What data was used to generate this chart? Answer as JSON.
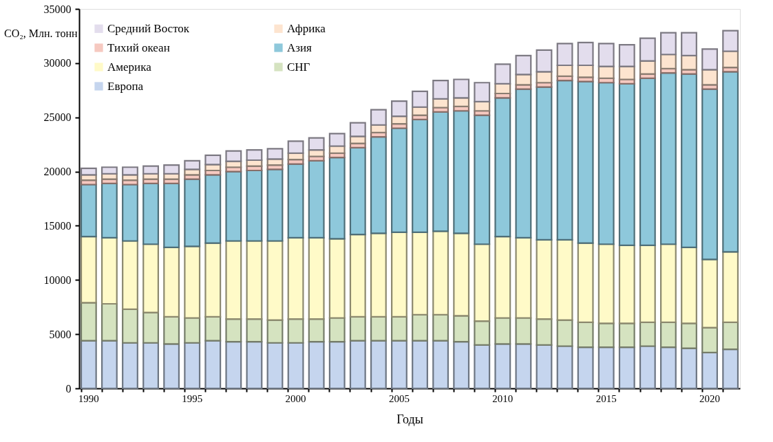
{
  "chart_data": {
    "type": "bar",
    "stacked": true,
    "xlabel": "Годы",
    "ylabel": "CO₂, Млн. тонн",
    "categories": [
      "1990",
      null,
      null,
      null,
      null,
      "1995",
      null,
      null,
      null,
      null,
      "2000",
      null,
      null,
      null,
      null,
      "2005",
      null,
      null,
      null,
      null,
      "2010",
      null,
      null,
      null,
      null,
      "2015",
      null,
      null,
      null,
      null,
      "2020",
      null
    ],
    "ylim": [
      0,
      35000
    ],
    "yticks": [
      0,
      5000,
      10000,
      15000,
      20000,
      25000,
      30000,
      35000
    ],
    "grid": false,
    "legend": "top left",
    "series": [
      {
        "name": "Европа",
        "color": "#c5d5ee",
        "values": [
          4400,
          4400,
          4200,
          4200,
          4100,
          4200,
          4400,
          4300,
          4300,
          4200,
          4200,
          4300,
          4300,
          4400,
          4400,
          4400,
          4400,
          4400,
          4300,
          4000,
          4100,
          4100,
          4000,
          3900,
          3800,
          3800,
          3800,
          3900,
          3800,
          3700,
          3300,
          3600
        ]
      },
      {
        "name": "СНГ",
        "color": "#d5e3c0",
        "values": [
          3500,
          3400,
          3100,
          2800,
          2500,
          2300,
          2200,
          2100,
          2100,
          2100,
          2200,
          2100,
          2200,
          2200,
          2200,
          2200,
          2400,
          2400,
          2400,
          2200,
          2400,
          2400,
          2400,
          2400,
          2300,
          2200,
          2200,
          2200,
          2300,
          2300,
          2300,
          2500
        ]
      },
      {
        "name": "Америка",
        "color": "#fffac8",
        "values": [
          6100,
          6100,
          6300,
          6300,
          6400,
          6600,
          6800,
          7200,
          7200,
          7300,
          7500,
          7500,
          7300,
          7600,
          7700,
          7800,
          7600,
          7700,
          7600,
          7100,
          7500,
          7400,
          7300,
          7400,
          7300,
          7300,
          7200,
          7100,
          7200,
          7000,
          6300,
          6500
        ]
      },
      {
        "name": "Азия",
        "color": "#8ec8db",
        "values": [
          4800,
          5000,
          5200,
          5600,
          5900,
          6200,
          6300,
          6400,
          6500,
          6600,
          6800,
          7100,
          7500,
          8000,
          8900,
          9600,
          10400,
          11000,
          11300,
          11900,
          12800,
          13700,
          14100,
          14700,
          14900,
          14900,
          14900,
          15400,
          15800,
          16000,
          15700,
          16600
        ]
      },
      {
        "name": "Тихий океан",
        "color": "#f6c9c0",
        "values": [
          400,
          400,
          400,
          400,
          400,
          400,
          400,
          400,
          400,
          400,
          400,
          400,
          400,
          400,
          400,
          400,
          400,
          400,
          400,
          400,
          400,
          400,
          400,
          400,
          400,
          400,
          400,
          400,
          400,
          400,
          400,
          400
        ]
      },
      {
        "name": "Африка",
        "color": "#fde4cf",
        "values": [
          500,
          500,
          500,
          500,
          500,
          500,
          550,
          550,
          550,
          550,
          600,
          600,
          650,
          650,
          700,
          700,
          750,
          800,
          800,
          850,
          900,
          950,
          1000,
          1000,
          1100,
          1100,
          1200,
          1200,
          1300,
          1300,
          1400,
          1500
        ]
      },
      {
        "name": "Средний Восток",
        "color": "#e3dded",
        "values": [
          600,
          600,
          700,
          700,
          800,
          800,
          850,
          950,
          950,
          950,
          1100,
          1100,
          1150,
          1250,
          1400,
          1400,
          1450,
          1700,
          1700,
          1750,
          1800,
          1750,
          2000,
          2000,
          2100,
          2100,
          2000,
          2100,
          2000,
          2100,
          1900,
          1900
        ]
      }
    ]
  }
}
